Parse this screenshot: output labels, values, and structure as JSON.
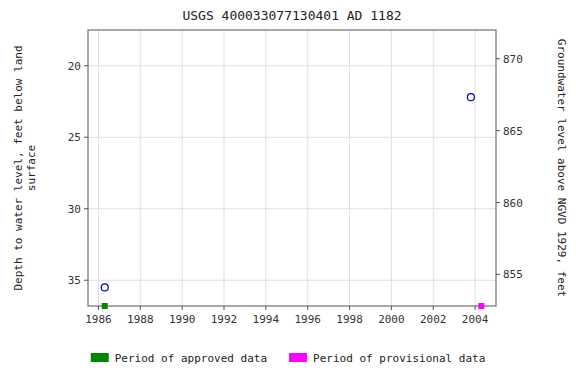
{
  "chart_data": {
    "type": "scatter",
    "title": "USGS 400033077130401 AD  1182",
    "ylabel": "Depth to water level, feet below land\n surface",
    "y2label": "Groundwater level above NGVD 1929, feet",
    "xlim": [
      1985.5,
      2005.0
    ],
    "xticks": [
      1986,
      1988,
      1990,
      1992,
      1994,
      1996,
      1998,
      2000,
      2002,
      2004
    ],
    "ylim": [
      36.8,
      17.5
    ],
    "yticks": [
      20,
      25,
      30,
      35
    ],
    "y2lim": [
      852.8,
      872.0
    ],
    "y2ticks": [
      855,
      860,
      865,
      870
    ],
    "grid": true,
    "legend": "bottom",
    "series": [
      {
        "x": [
          1986.3,
          2003.8
        ],
        "values": [
          35.5,
          22.2
        ],
        "color": "#0000cc",
        "marker": "circle-open"
      },
      {
        "name": "Period of approved data",
        "x": [
          1986.3
        ],
        "values": [
          36.8
        ],
        "color": "#008800",
        "marker": "square"
      },
      {
        "name": "Period of provisional data",
        "x": [
          2004.3
        ],
        "values": [
          36.8
        ],
        "color": "#ff00ff",
        "marker": "square"
      }
    ]
  }
}
